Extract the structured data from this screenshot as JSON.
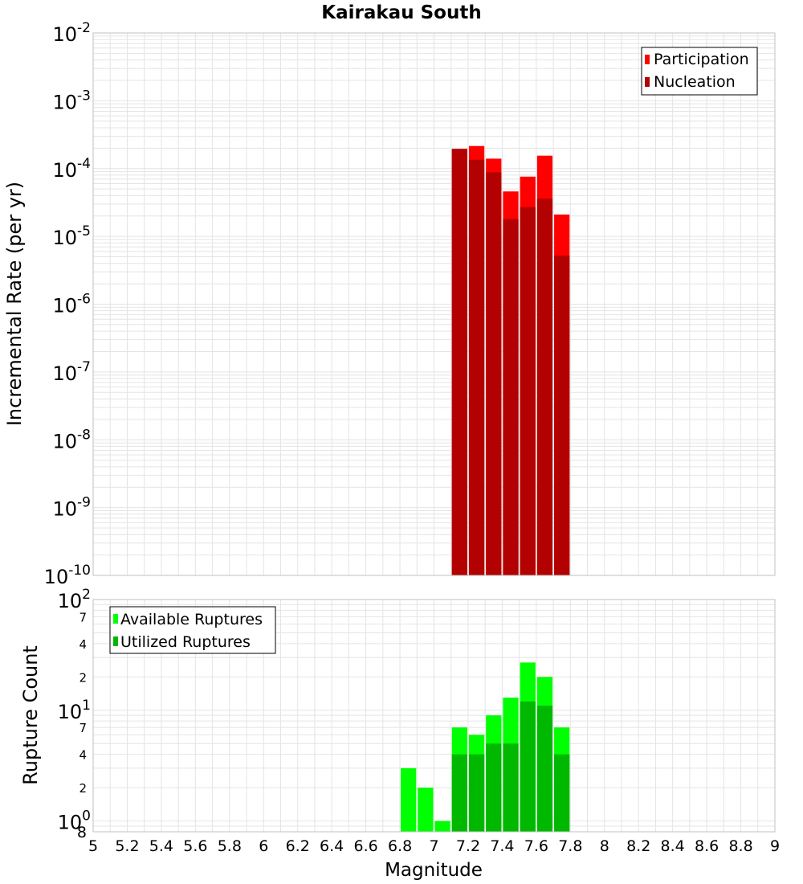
{
  "title": "Kairakau South",
  "colors": {
    "participation": "#ff0000",
    "nucleation": "#b30000",
    "available": "#00ff00",
    "utilized": "#00b800",
    "grid": "#e4e4e4",
    "frame": "#c0c0c0"
  },
  "chart_data": [
    {
      "id": "rates",
      "type": "bar",
      "yscale": "log",
      "ylabel": "Incremental Rate (per yr)",
      "ylim": [
        1e-10,
        0.01
      ],
      "y_major_ticks": [
        {
          "base": "10",
          "exp": "-10"
        },
        {
          "base": "10",
          "exp": "-9"
        },
        {
          "base": "10",
          "exp": "-8"
        },
        {
          "base": "10",
          "exp": "-7"
        },
        {
          "base": "10",
          "exp": "-6"
        },
        {
          "base": "10",
          "exp": "-5"
        },
        {
          "base": "10",
          "exp": "-4"
        },
        {
          "base": "10",
          "exp": "-3"
        },
        {
          "base": "10",
          "exp": "-2"
        }
      ],
      "legend_position": "top-right",
      "series": [
        {
          "name": "Participation",
          "color_key": "participation",
          "x": [
            7.15,
            7.25,
            7.35,
            7.45,
            7.55,
            7.65,
            7.75
          ],
          "values": [
            0.000195,
            0.000215,
            0.00014,
            4.6e-05,
            7.6e-05,
            0.000155,
            2.1e-05
          ]
        },
        {
          "name": "Nucleation",
          "color_key": "nucleation",
          "x": [
            7.15,
            7.25,
            7.35,
            7.45,
            7.55,
            7.65,
            7.75
          ],
          "values": [
            0.000195,
            0.000135,
            8.8e-05,
            1.8e-05,
            2.7e-05,
            3.6e-05,
            5.2e-06
          ]
        }
      ]
    },
    {
      "id": "counts",
      "type": "bar",
      "yscale": "log",
      "ylabel": "Rupture Count",
      "ylim": [
        0.8,
        100
      ],
      "y_minor_labels": [
        {
          "value": 2,
          "label": "2"
        },
        {
          "value": 4,
          "label": "4"
        },
        {
          "value": 7,
          "label": "7"
        },
        {
          "value": 20,
          "label": "2"
        },
        {
          "value": 40,
          "label": "4"
        },
        {
          "value": 70,
          "label": "7"
        }
      ],
      "y_major_ticks": [
        {
          "value": 1,
          "base": "10",
          "exp": "0"
        },
        {
          "value": 10,
          "base": "10",
          "exp": "1"
        },
        {
          "value": 100,
          "base": "10",
          "exp": "2"
        }
      ],
      "y_bottom_label": "8",
      "legend_position": "top-left",
      "series": [
        {
          "name": "Available Ruptures",
          "color_key": "available",
          "x": [
            6.85,
            6.95,
            7.05,
            7.15,
            7.25,
            7.35,
            7.45,
            7.55,
            7.65,
            7.75
          ],
          "values": [
            3,
            2,
            1,
            7,
            6,
            9,
            13,
            27,
            20,
            7
          ]
        },
        {
          "name": "Utilized Ruptures",
          "color_key": "utilized",
          "x": [
            7.15,
            7.25,
            7.35,
            7.45,
            7.55,
            7.65,
            7.75
          ],
          "values": [
            4,
            4,
            5,
            5,
            12,
            11,
            4
          ]
        }
      ]
    }
  ],
  "xaxis": {
    "label": "Magnitude",
    "xlim": [
      5,
      9
    ],
    "bin_width": 0.1,
    "ticks": [
      "5",
      "5.2",
      "5.4",
      "5.6",
      "5.8",
      "6",
      "6.2",
      "6.4",
      "6.6",
      "6.8",
      "7",
      "7.2",
      "7.4",
      "7.6",
      "7.8",
      "8",
      "8.2",
      "8.4",
      "8.6",
      "8.8",
      "9"
    ]
  }
}
